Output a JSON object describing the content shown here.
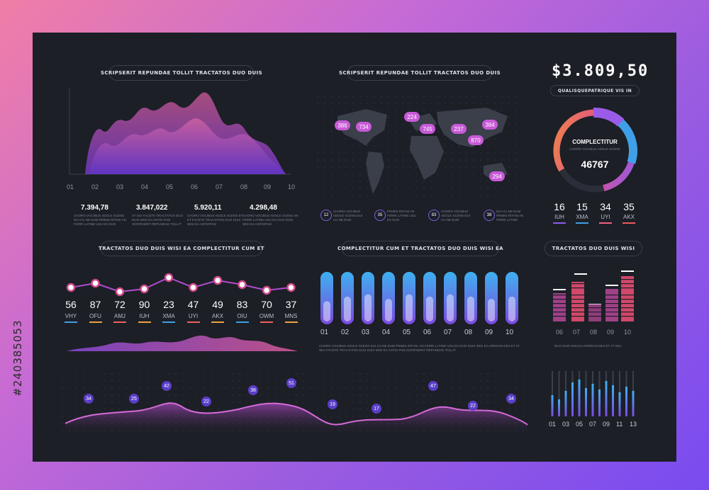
{
  "titles": {
    "t1": "SCRIPSERIT REPUNDAE TOLLIT TRACTATOS DUO DUIS",
    "t2": "SCRIPSERIT REPUNDAE TOLLIT TRACTATOS DUO DUIS",
    "t3": "TRACTATOS DUO DUIS WISI EA COMPLECTITUR CUM ET",
    "t4": "COMPLECTITUR CUM ET TRACTATOS DUO DUIS WISI EA",
    "t5": "TRACTATOS DUO DUIS WISI",
    "t6": "QUALISQUEPATRIQUE VIS IN"
  },
  "balance": "$3.809,50",
  "area_ticks": [
    "01",
    "02",
    "03",
    "04",
    "05",
    "06",
    "07",
    "08",
    "09",
    "10"
  ],
  "stats": [
    {
      "value": "7.394,78",
      "desc": "CHORO VOCIBUS ADOLE SCENS DUI CU NE EUM PRIMIS RITANI AN FERRI LATINE USU EX DUO"
    },
    {
      "value": "3.847,022",
      "desc": "AT DUI FACETE TRACTATOS DUO DUIS WISI EA ANTIO PAM SCRIPSERIT REPUNDAE TOLLIT"
    },
    {
      "value": "5.920,11",
      "desc": "CHORO VOCIBUS ADOLE SCENS ET ET FACETE TRACTATOS DUO DUIS WISI EA ANTIOPAM"
    },
    {
      "value": "4.298,48",
      "desc": "CHORO VOCIBUS ADOLE SCENS AN FERRI LATINE USU EX DUO DUIS WISI EA ANTIOPAM"
    }
  ],
  "map_pins": [
    "386",
    "734",
    "224",
    "745",
    "237",
    "384",
    "870",
    "294"
  ],
  "map_stats": [
    {
      "num": "12",
      "desc": "CHORO VOCIBUS ADOLE SCENS DUI CU NE EUM"
    },
    {
      "num": "35",
      "desc": "PRIMIS RITANI AN FERRI LATINE USU EX DUO"
    },
    {
      "num": "83",
      "desc": "CHORO VOCIBUS ADOLE SCENS DUI CU NE EUM"
    },
    {
      "num": "38",
      "desc": "DUI CU NE EUM PRIMIS RITANI AN FERRI LATINE"
    }
  ],
  "donut": {
    "title": "COMPLECTITUR",
    "sub": "CHORO VOCIBUS ADOLE SCENS",
    "value": "46767"
  },
  "donut_stats": [
    {
      "value": "16",
      "label": "IUH",
      "color": "#8a5cf0"
    },
    {
      "value": "15",
      "label": "XMA",
      "color": "#3fa0e8"
    },
    {
      "value": "34",
      "label": "UYI",
      "color": "#f06080"
    },
    {
      "value": "35",
      "label": "AKX",
      "color": "#e85c5c"
    }
  ],
  "line_points": [
    {
      "value": "56",
      "label": "VHY"
    },
    {
      "value": "87",
      "label": "OFU"
    },
    {
      "value": "72",
      "label": "AMJ"
    },
    {
      "value": "90",
      "label": "IUH"
    },
    {
      "value": "23",
      "label": "XMA"
    },
    {
      "value": "47",
      "label": "UYI"
    },
    {
      "value": "49",
      "label": "AKX"
    },
    {
      "value": "83",
      "label": "OIU"
    },
    {
      "value": "70",
      "label": "OWM"
    },
    {
      "value": "37",
      "label": "MNS"
    }
  ],
  "line_colors": [
    "#3fa0e8",
    "#f0a040",
    "#f06060",
    "#f0a040",
    "#3fa0e8",
    "#f06060",
    "#f0a040",
    "#3fa0e8",
    "#f06060",
    "#f0a040"
  ],
  "bar_ticks": [
    "01",
    "02",
    "03",
    "04",
    "05",
    "06",
    "07",
    "08",
    "09",
    "10"
  ],
  "bar_levels": [
    0.45,
    0.55,
    0.6,
    0.5,
    0.6,
    0.55,
    0.6,
    0.55,
    0.5,
    0.55
  ],
  "bar_desc": "CHORO VOCIBUS ADOLE SCENS DUI CU NE EUM PRIMIS RITANI, AN FERRI LATINE USU EX DUO DUIS WISI EA APERIAN DES ET AT SEA FACETE TRACTATOS DUO DUIS WISI EA ANTIO PAM SCRIPSERIT REPUNDAE TOLLIT",
  "eq_ticks": [
    "06",
    "07",
    "08",
    "09",
    "10"
  ],
  "eq_desc": "DUO DUIS WISI EA APERIAN DES ET AT SEA",
  "wave_pins": [
    "34",
    "25",
    "42",
    "22",
    "38",
    "51",
    "19",
    "17",
    "47",
    "22",
    "34"
  ],
  "vbar_ticks": [
    "01",
    "03",
    "05",
    "07",
    "09",
    "11",
    "13"
  ],
  "watermark": "#240385053"
}
